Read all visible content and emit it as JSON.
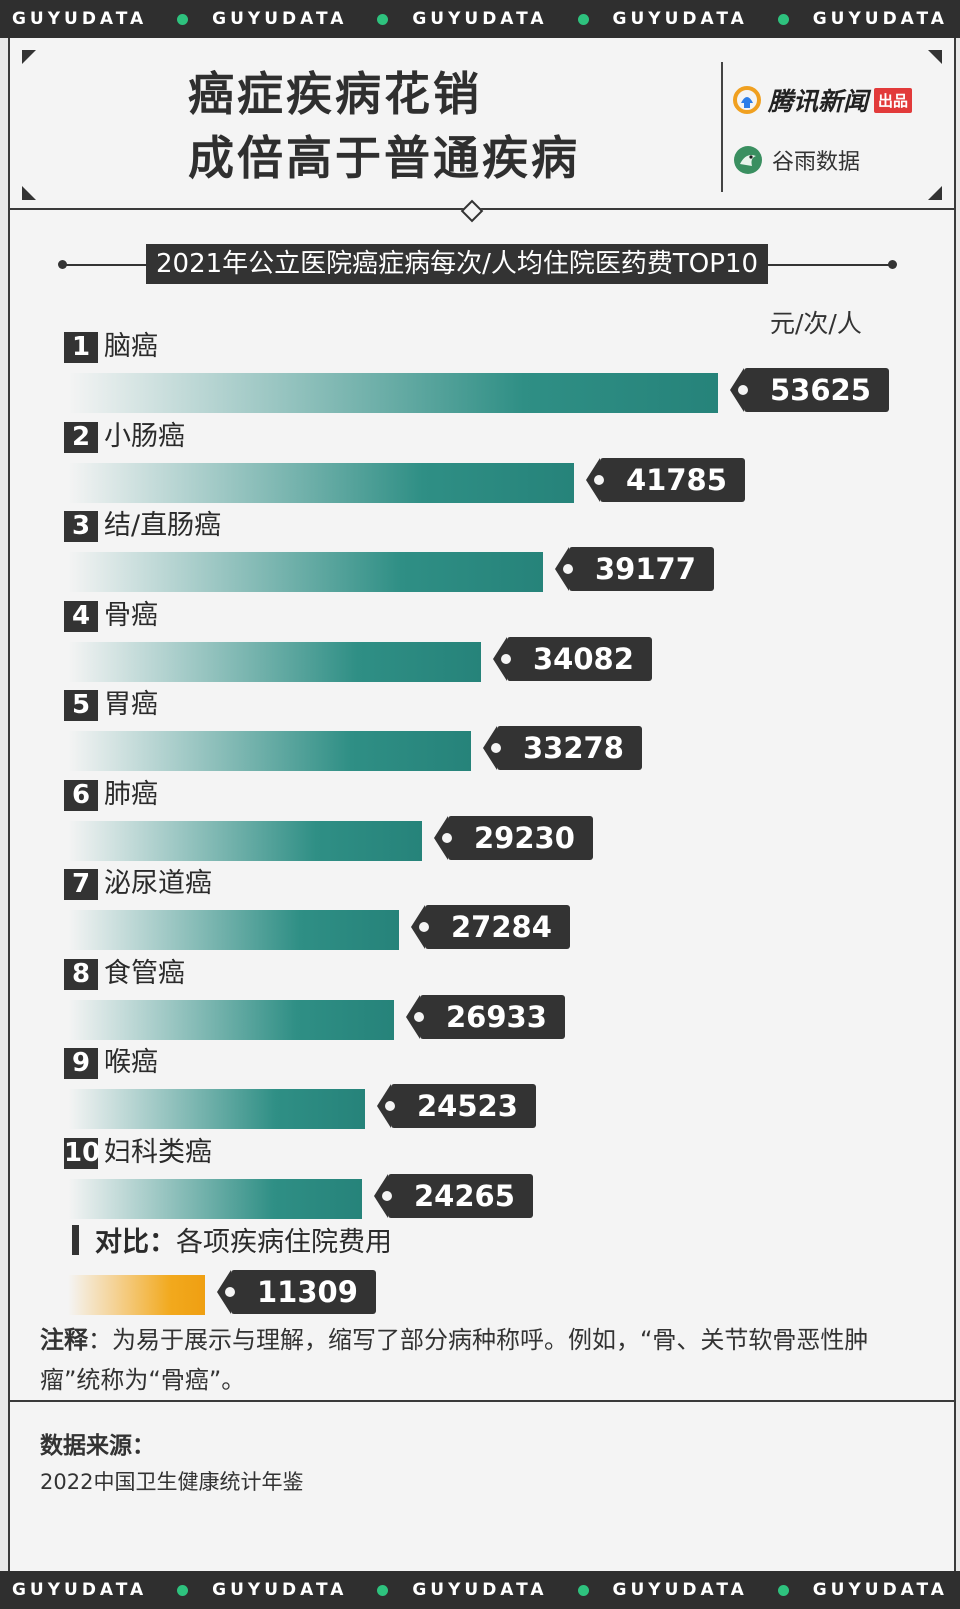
{
  "strip_text": "GUYUDATA",
  "title_line1": "癌症疾病花销",
  "title_line2": "成倍高于普通疾病",
  "logo1_text": "腾讯新闻",
  "logo1_badge": "出品",
  "logo2_text": "谷雨数据",
  "colors": {
    "bar": "#2f8f85",
    "compare_bar": "#f2a91d",
    "dark": "#333333",
    "strip_dot": "#2ec27e"
  },
  "chart_data": {
    "type": "bar",
    "title": "2021年公立医院癌症病每次/人均住院医药费TOP10",
    "unit": "元/次/人",
    "categories": [
      "脑癌",
      "小肠癌",
      "结/直肠癌",
      "骨癌",
      "胃癌",
      "肺癌",
      "泌尿道癌",
      "食管癌",
      "喉癌",
      "妇科类癌"
    ],
    "ranks": [
      "1",
      "2",
      "3",
      "4",
      "5",
      "6",
      "7",
      "8",
      "9",
      "10"
    ],
    "values": [
      53625,
      41785,
      39177,
      34082,
      33278,
      29230,
      27284,
      26933,
      24523,
      24265
    ],
    "comparison": {
      "label": "对比：",
      "name": "各项疾病住院费用",
      "value": 11309
    }
  },
  "note_label": "注释",
  "note_text": "：为易于展示与理解，缩写了部分病种称呼。例如，“骨、关节软骨恶性肿瘤”统称为“骨癌”。",
  "source_label": "数据来源：",
  "source_text": "2022中国卫生健康统计年鉴"
}
